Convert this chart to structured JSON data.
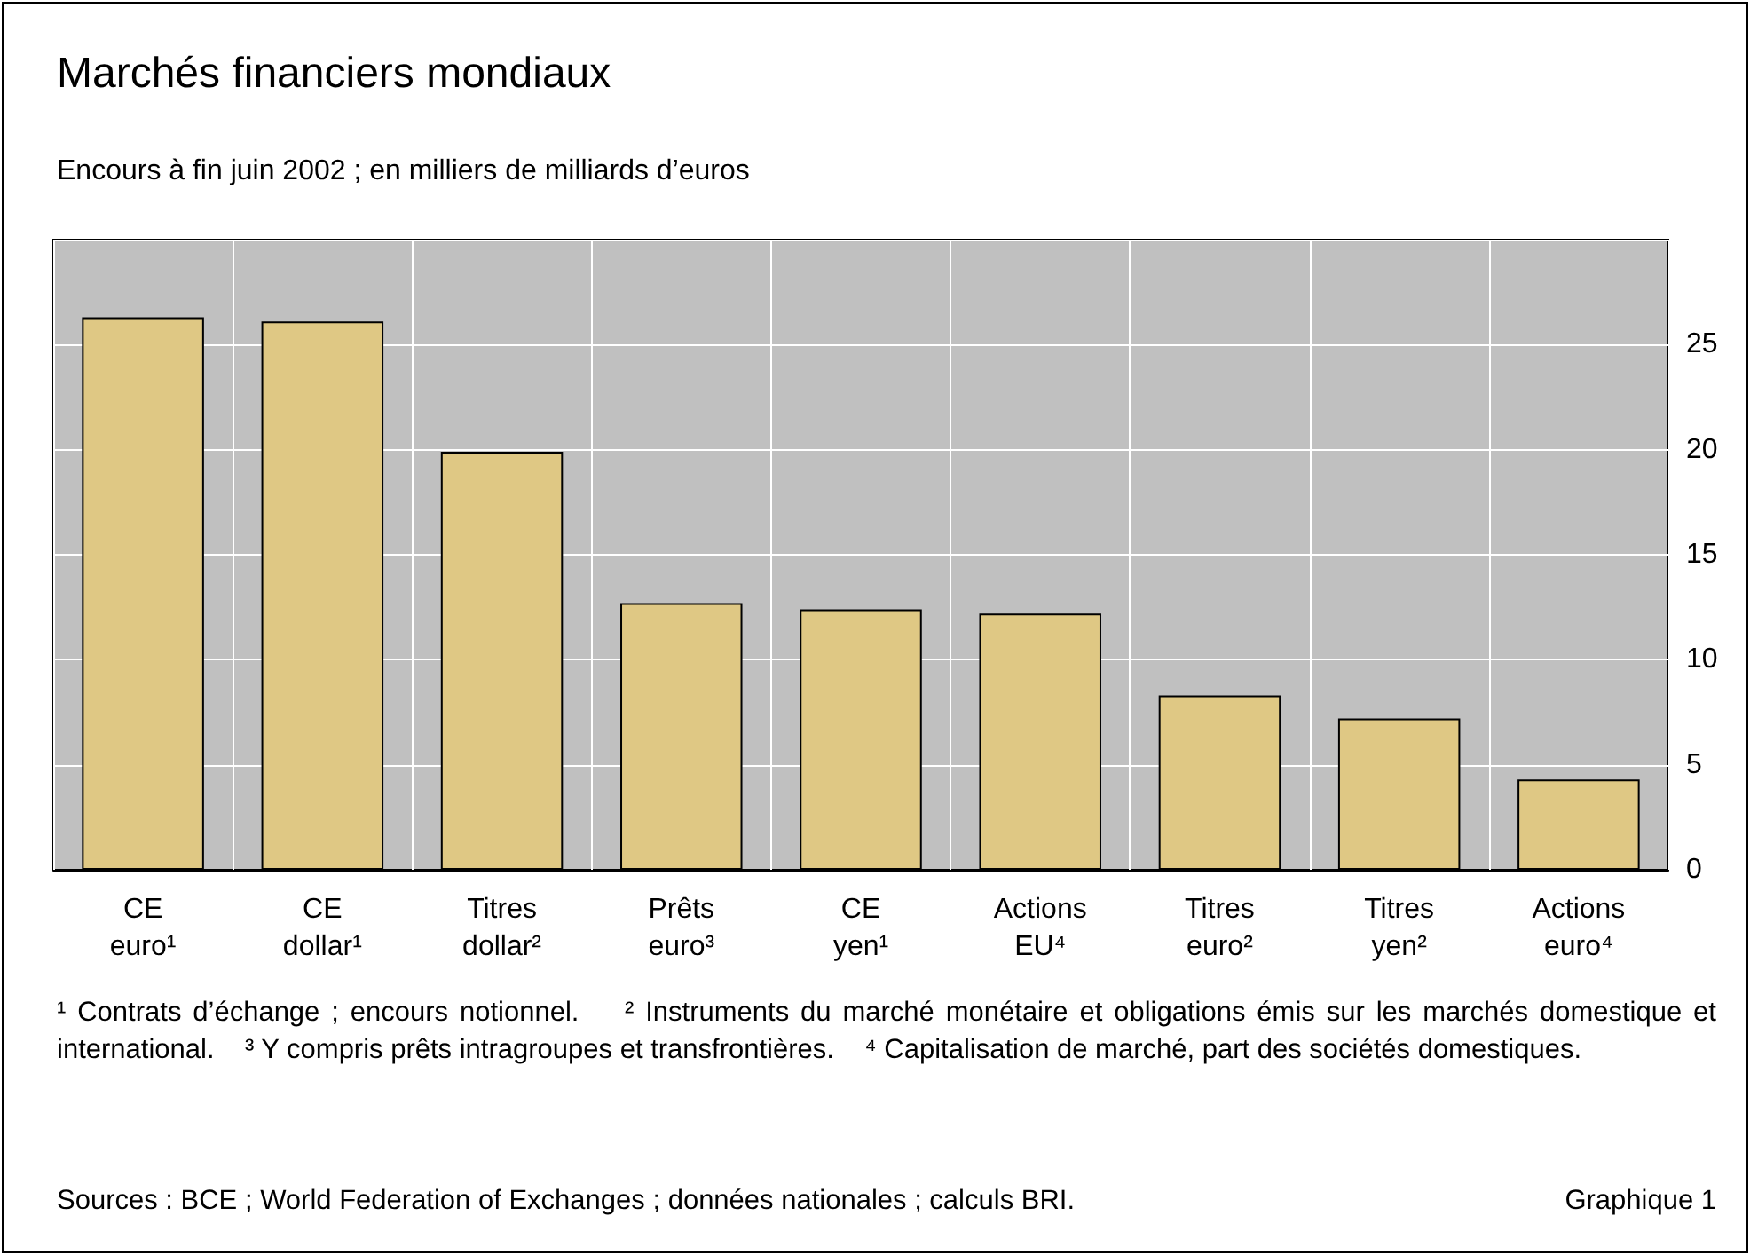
{
  "chart_data": {
    "type": "bar",
    "title": "Marchés financiers mondiaux",
    "subtitle": "Encours à fin juin 2002 ; en milliers de milliards d’euros",
    "categories": [
      "CE\neuro¹",
      "CE\ndollar¹",
      "Titres\ndollar²",
      "Prêts\neuro³",
      "CE\nyen¹",
      "Actions\nEU⁴",
      "Titres\neuro²",
      "Titres\nyen²",
      "Actions\neuro⁴"
    ],
    "values": [
      26.3,
      26.1,
      19.9,
      12.7,
      12.4,
      12.2,
      8.3,
      7.2,
      4.3
    ],
    "color": "#dfc884",
    "ylim": [
      0,
      30
    ],
    "yticks": [
      0,
      5,
      10,
      15,
      20,
      25,
      {
        "value": 30,
        "label": null
      }
    ],
    "grid": true,
    "annotations": [
      "¹ Contrats d’échange ; encours notionnel.",
      "² Instruments du marché monétaire et obligations émis sur les marchés domestique et international.",
      "³ Y compris prêts intragroupes et transfrontières.",
      "⁴ Capitalisation de marché, part des sociétés domestiques.",
      "Sources : BCE ; World Federation of Exchanges ; données nationales ; calculs BRI.",
      "Graphique 1"
    ]
  }
}
